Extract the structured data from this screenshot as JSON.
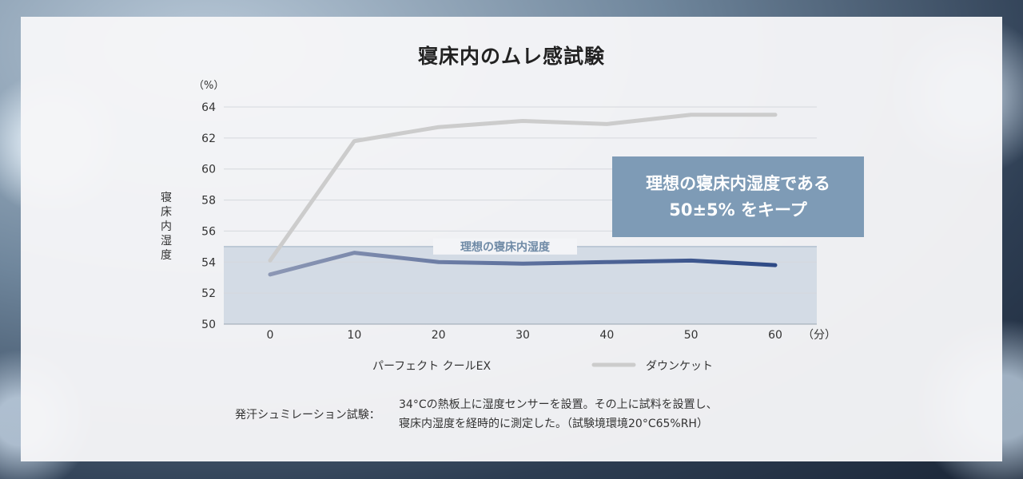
{
  "title": "寝床内のムレ感試験",
  "ylabel": "寝床内湿度",
  "yunit": "（%）",
  "xunit": "（分）",
  "band_label": "理想の寝床内湿度",
  "callout": {
    "line1": "理想の寝床内湿度である",
    "line2": "50±5% をキープ"
  },
  "note": {
    "label": "発汗シュミレーション試験：",
    "line1": "34°Cの熱板上に湿度センサーを設置。その上に試料を設置し、",
    "line2": "寝床内湿度を経時的に測定した。（試験境環境20°C65%RH）"
  },
  "colors": {
    "perfect": "#2e4a86",
    "down": "#cccccc",
    "band": "#d3dbe5",
    "band_line": "#a9b9c9",
    "band_text": "#6f8aa6"
  },
  "chart_data": {
    "type": "line",
    "title": "寝床内のムレ感試験",
    "xlabel": "",
    "ylabel": "寝床内湿度",
    "x": [
      0,
      10,
      20,
      30,
      40,
      50,
      60
    ],
    "ylim": [
      50,
      64
    ],
    "yticks": [
      50,
      52,
      54,
      56,
      58,
      60,
      62,
      64
    ],
    "band": [
      50,
      55
    ],
    "grid": true,
    "legend": "bottom",
    "series": [
      {
        "name": "パーフェクト クールEX",
        "values": [
          53.2,
          54.6,
          54.0,
          53.9,
          54.0,
          54.1,
          53.8
        ]
      },
      {
        "name": "ダウンケット",
        "values": [
          54.1,
          61.8,
          62.7,
          63.1,
          62.9,
          63.5,
          63.5
        ]
      }
    ]
  }
}
